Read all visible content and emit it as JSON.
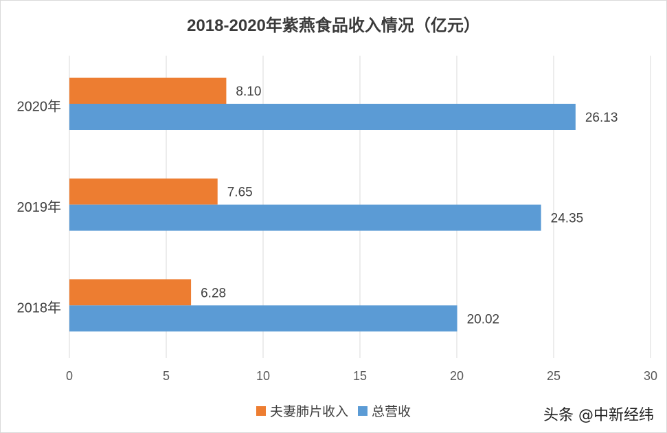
{
  "chart_data": {
    "type": "bar",
    "orientation": "horizontal",
    "title": "2018-2020年紫燕食品收入情况（亿元）",
    "categories": [
      "2020年",
      "2019年",
      "2018年"
    ],
    "series": [
      {
        "name": "夫妻肺片收入",
        "color": "#ed7d31",
        "values": [
          8.1,
          7.65,
          6.28
        ]
      },
      {
        "name": "总营收",
        "color": "#5b9bd5",
        "values": [
          26.13,
          24.35,
          20.02
        ]
      }
    ],
    "xlim": [
      0,
      30
    ],
    "xticks": [
      "0",
      "5",
      "10",
      "15",
      "20",
      "25",
      "30"
    ],
    "xtick_values": [
      0,
      5,
      10,
      15,
      20,
      25,
      30
    ],
    "grid": true,
    "legend": "bottom"
  },
  "footer": {
    "credit": "头条 @中新经纬"
  }
}
